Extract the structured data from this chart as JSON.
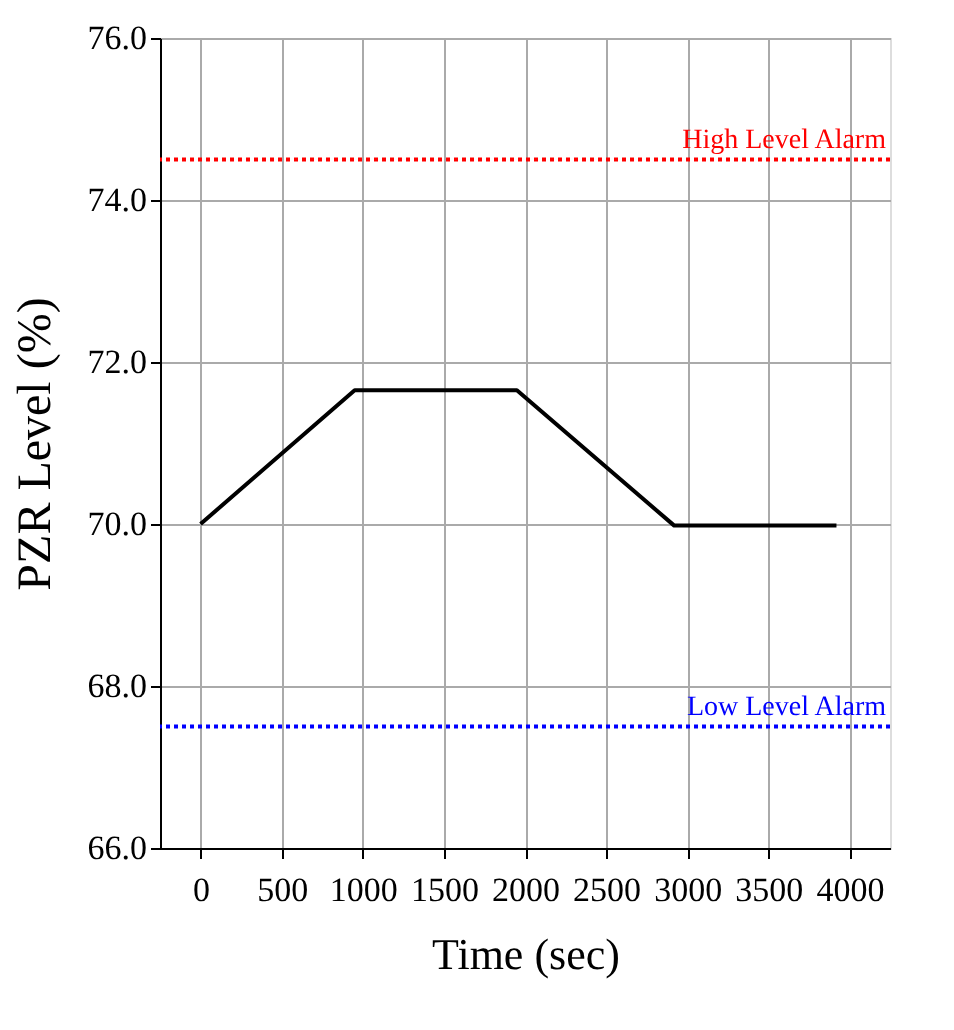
{
  "chart_data": {
    "type": "line",
    "xlabel": "Time (sec)",
    "ylabel": "PZR Level (%)",
    "x": [
      0,
      950,
      1950,
      2920,
      3920
    ],
    "series": [
      {
        "color": "#000000",
        "values": [
          70.0,
          71.65,
          71.65,
          69.98,
          69.98
        ]
      }
    ],
    "xlim": [
      -250,
      4250
    ],
    "xticks": [
      0,
      500,
      1000,
      1500,
      2000,
      2500,
      3000,
      3500,
      4000
    ],
    "ylim": [
      66.0,
      76.0
    ],
    "yticks": [
      {
        "value": 66,
        "label": "66.0"
      },
      {
        "value": 68,
        "label": "68.0"
      },
      {
        "value": 70,
        "label": "70.0"
      },
      {
        "value": 72,
        "label": "72.0"
      },
      {
        "value": 74,
        "label": "74.0"
      },
      {
        "value": 76,
        "label": "76.0"
      }
    ],
    "ref_lines": [
      {
        "axis": "y",
        "value": 74.5,
        "label": "High Level Alarm",
        "color": "#ff0000",
        "line_style": "dotted"
      },
      {
        "axis": "y",
        "value": 67.5,
        "label": "Low Level Alarm",
        "color": "#0000ff",
        "line_style": "dotted"
      }
    ],
    "grid": true,
    "line_style": "solid",
    "marker": "none"
  }
}
